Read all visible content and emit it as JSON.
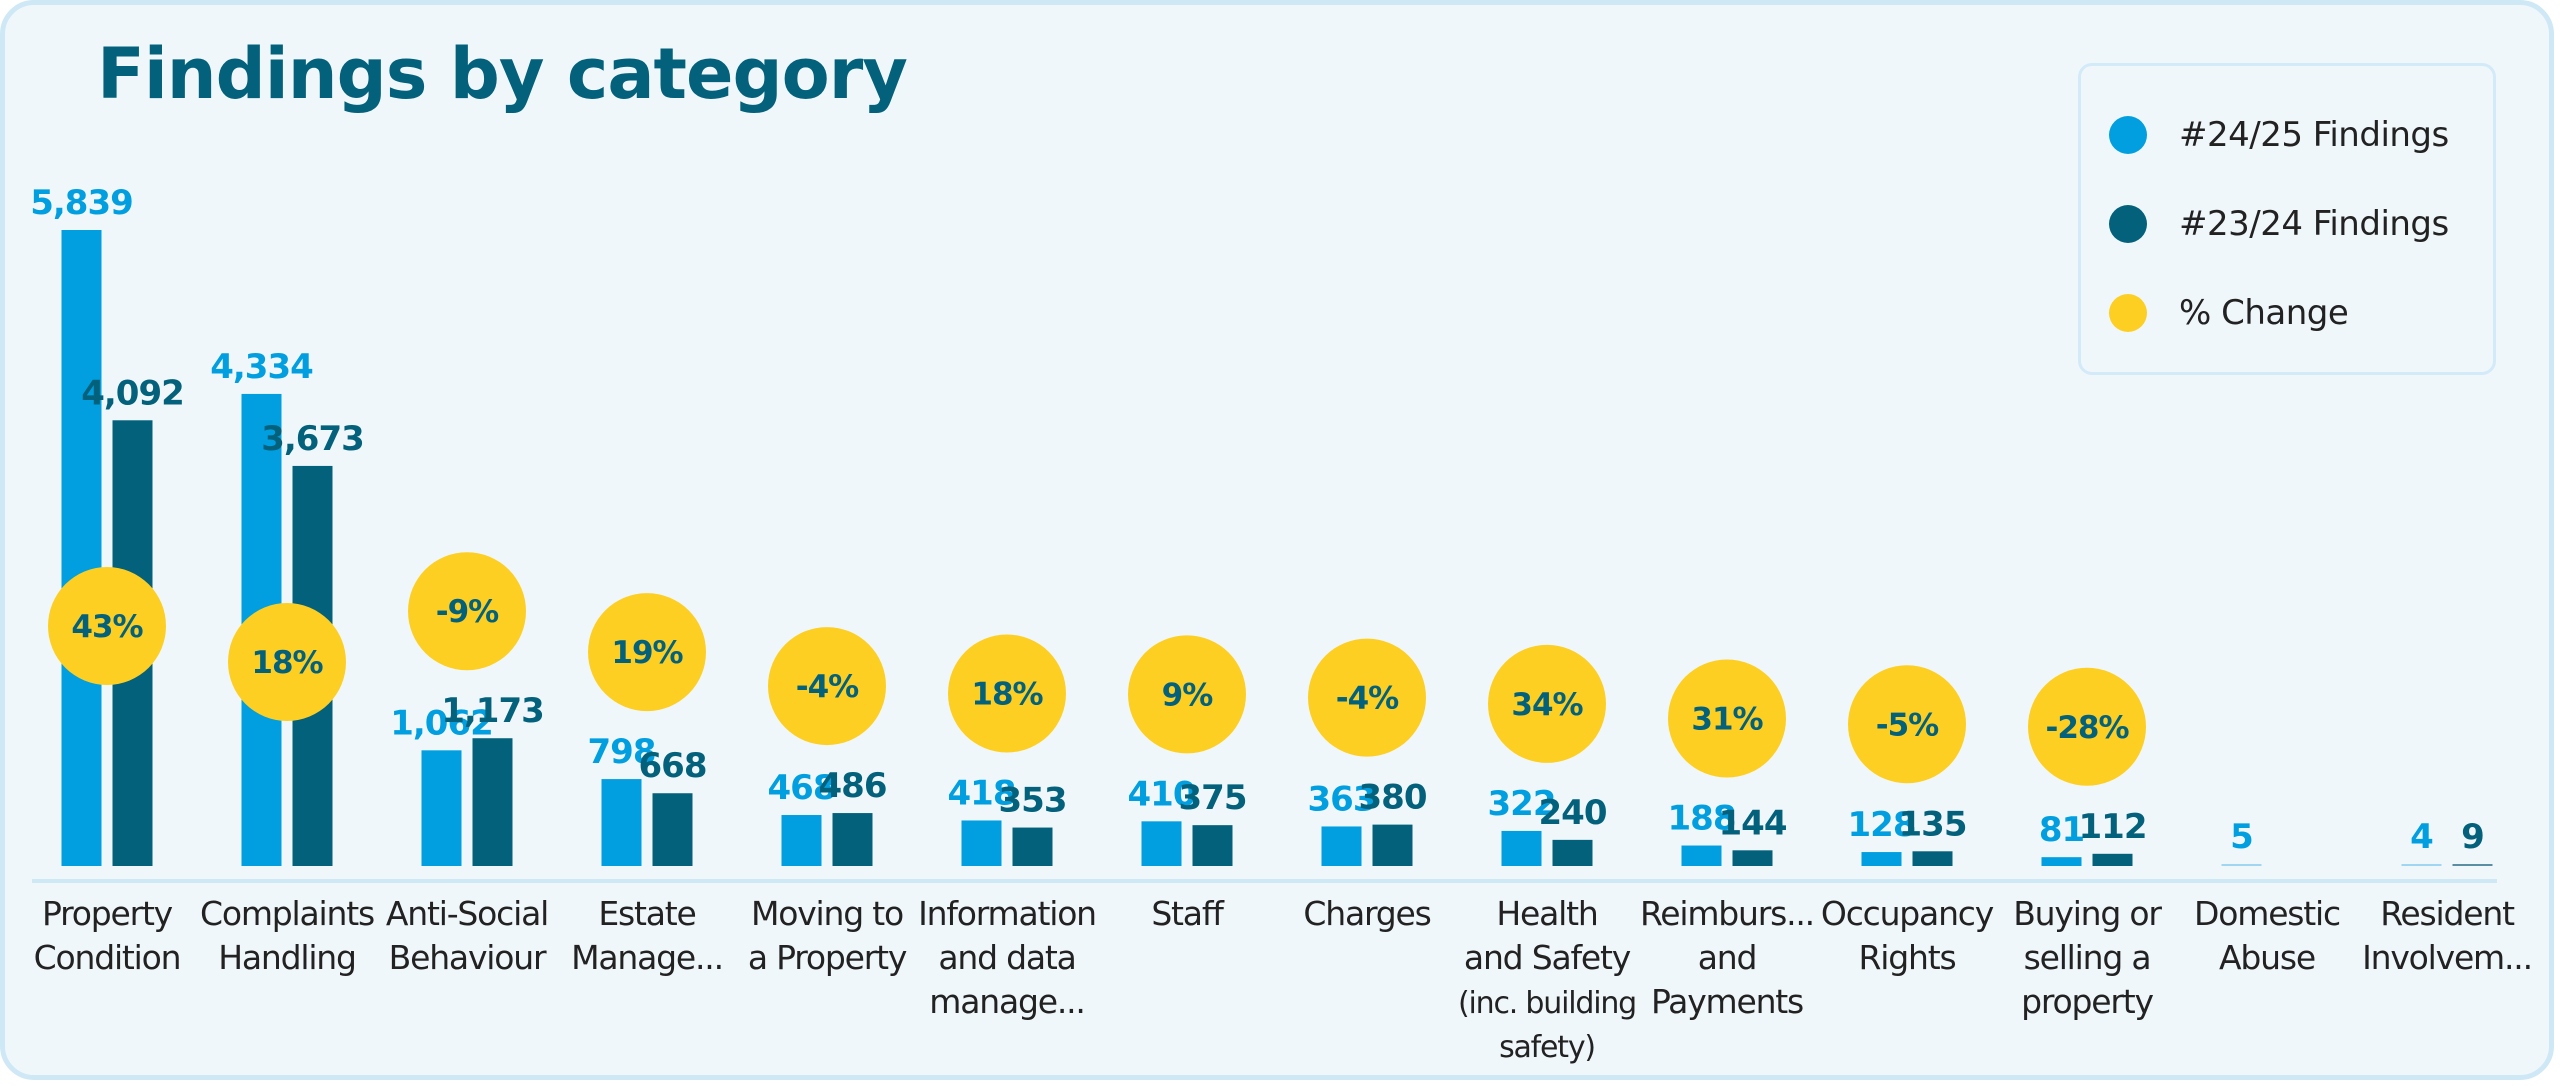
{
  "chart_data": {
    "type": "bar",
    "title": "Findings by category",
    "xlabel": "",
    "ylabel": "",
    "ylim": [
      0,
      5839
    ],
    "grid": false,
    "legend_position": "top-right",
    "categories": [
      [
        "Property",
        "Condition"
      ],
      [
        "Complaints",
        "Handling"
      ],
      [
        "Anti-Social",
        "Behaviour"
      ],
      [
        "Estate",
        "Manage..."
      ],
      [
        "Moving to",
        "a Property"
      ],
      [
        "Information",
        "and data",
        "manage..."
      ],
      [
        "Staff"
      ],
      [
        "Charges"
      ],
      [
        "Health",
        "and Safety",
        "(inc. building",
        "safety)"
      ],
      [
        "Reimburs...",
        "and",
        "Payments"
      ],
      [
        "Occupancy",
        "Rights"
      ],
      [
        "Buying or",
        "selling a",
        "property"
      ],
      [
        "Domestic",
        "Abuse"
      ],
      [
        "Resident",
        "Involvem..."
      ]
    ],
    "series": [
      {
        "name": "#24/25 Findings",
        "color": "#019fe0",
        "values": [
          5839,
          4334,
          1062,
          798,
          468,
          418,
          410,
          363,
          322,
          188,
          128,
          81,
          5,
          4
        ],
        "labels": [
          "5,839",
          "4,334",
          "1,062",
          "798",
          "468",
          "418",
          "410",
          "363",
          "322",
          "188",
          "128",
          "81",
          "5",
          "4"
        ]
      },
      {
        "name": "#23/24 Findings",
        "color": "#03617c",
        "values": [
          4092,
          3673,
          1173,
          668,
          486,
          353,
          375,
          380,
          240,
          144,
          135,
          112,
          null,
          9
        ],
        "labels": [
          "4,092",
          "3,673",
          "1,173",
          "668",
          "486",
          "353",
          "375",
          "380",
          "240",
          "144",
          "135",
          "112",
          "",
          "9"
        ]
      },
      {
        "name": "% Change",
        "color": "#fdcf23",
        "values": [
          43,
          18,
          -9,
          19,
          -4,
          18,
          9,
          -4,
          34,
          31,
          -5,
          -28,
          null,
          null
        ],
        "labels": [
          "43%",
          "18%",
          "-9%",
          "19%",
          "-4%",
          "18%",
          "9%",
          "-4%",
          "34%",
          "31%",
          "-5%",
          "-28%",
          "",
          ""
        ]
      }
    ]
  },
  "legend": {
    "items": [
      {
        "label": "#24/25 Findings",
        "color": "#019fe0"
      },
      {
        "label": "#23/24 Findings",
        "color": "#03617c"
      },
      {
        "label": "% Change",
        "color": "#fdcf23"
      }
    ]
  }
}
